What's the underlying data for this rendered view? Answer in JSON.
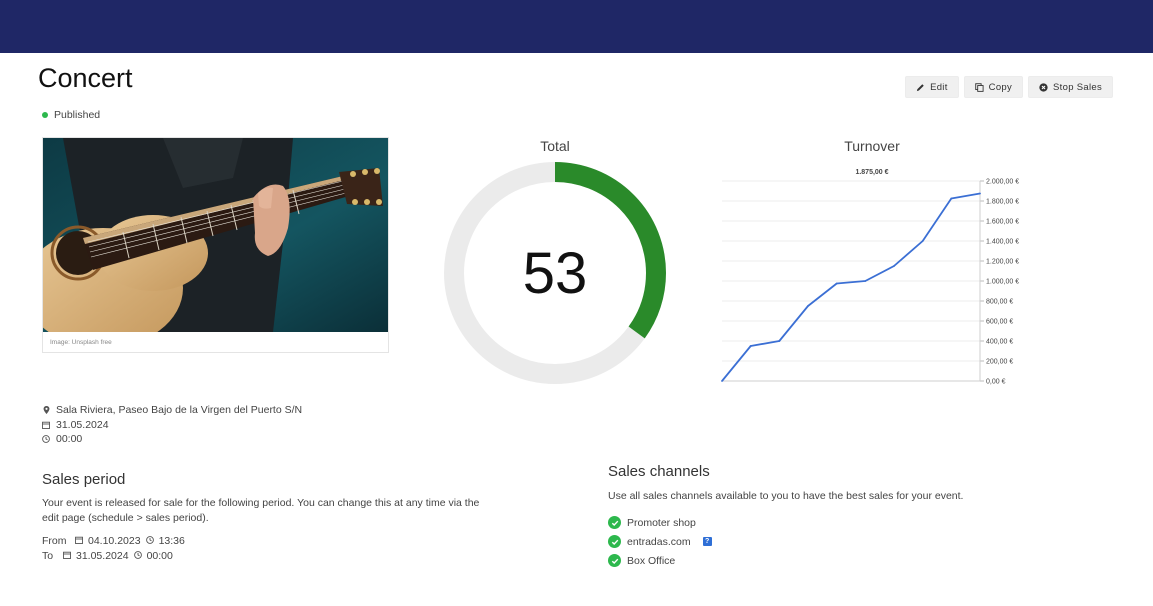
{
  "header": {
    "title": "Concert",
    "status": "Published",
    "status_color": "#2db84d",
    "bar_color": "#1f2766"
  },
  "toolbar": {
    "edit_label": "Edit",
    "copy_label": "Copy",
    "stop_sales_label": "Stop Sales"
  },
  "image": {
    "caption": "Image: Unsplash free"
  },
  "total": {
    "title": "Total",
    "value": "53",
    "progress_fraction": 0.35,
    "color": "#2a8a2a",
    "track_color": "#ebebeb"
  },
  "turnover": {
    "title": "Turnover",
    "peak_label": "1.875,00 €",
    "line_color": "#3b6fd4"
  },
  "chart_data": {
    "type": "line",
    "title": "Turnover",
    "annotation": "1.875,00 €",
    "x": [
      0,
      1,
      2,
      3,
      4,
      5,
      6,
      7,
      8,
      9
    ],
    "values": [
      0,
      350,
      400,
      750,
      975,
      1000,
      1150,
      1400,
      1825,
      1875
    ],
    "ylim": [
      0,
      2000
    ],
    "y_ticks": [
      "0,00 €",
      "200,00 €",
      "400,00 €",
      "600,00 €",
      "800,00 €",
      "1.000,00 €",
      "1.200,00 €",
      "1.400,00 €",
      "1.600,00 €",
      "1.800,00 €",
      "2.000,00 €"
    ],
    "grid": true,
    "y_axis_position": "right"
  },
  "event": {
    "location": "Sala Riviera, Paseo Bajo de la Virgen del Puerto S/N",
    "date": "31.05.2024",
    "time": "00:00"
  },
  "sales_period": {
    "title": "Sales period",
    "description": "Your event is released for sale for the following period. You can change this at any time via the edit page (schedule > sales period).",
    "from_label": "From",
    "from_date": "04.10.2023",
    "from_time": "13:36",
    "to_label": "To",
    "to_date": "31.05.2024",
    "to_time": "00:00"
  },
  "sales_channels": {
    "title": "Sales channels",
    "description": "Use all sales channels available to you to have the best sales for your event.",
    "items": [
      "Promoter shop",
      "entradas.com",
      "Box Office"
    ],
    "help_badge": "?"
  }
}
